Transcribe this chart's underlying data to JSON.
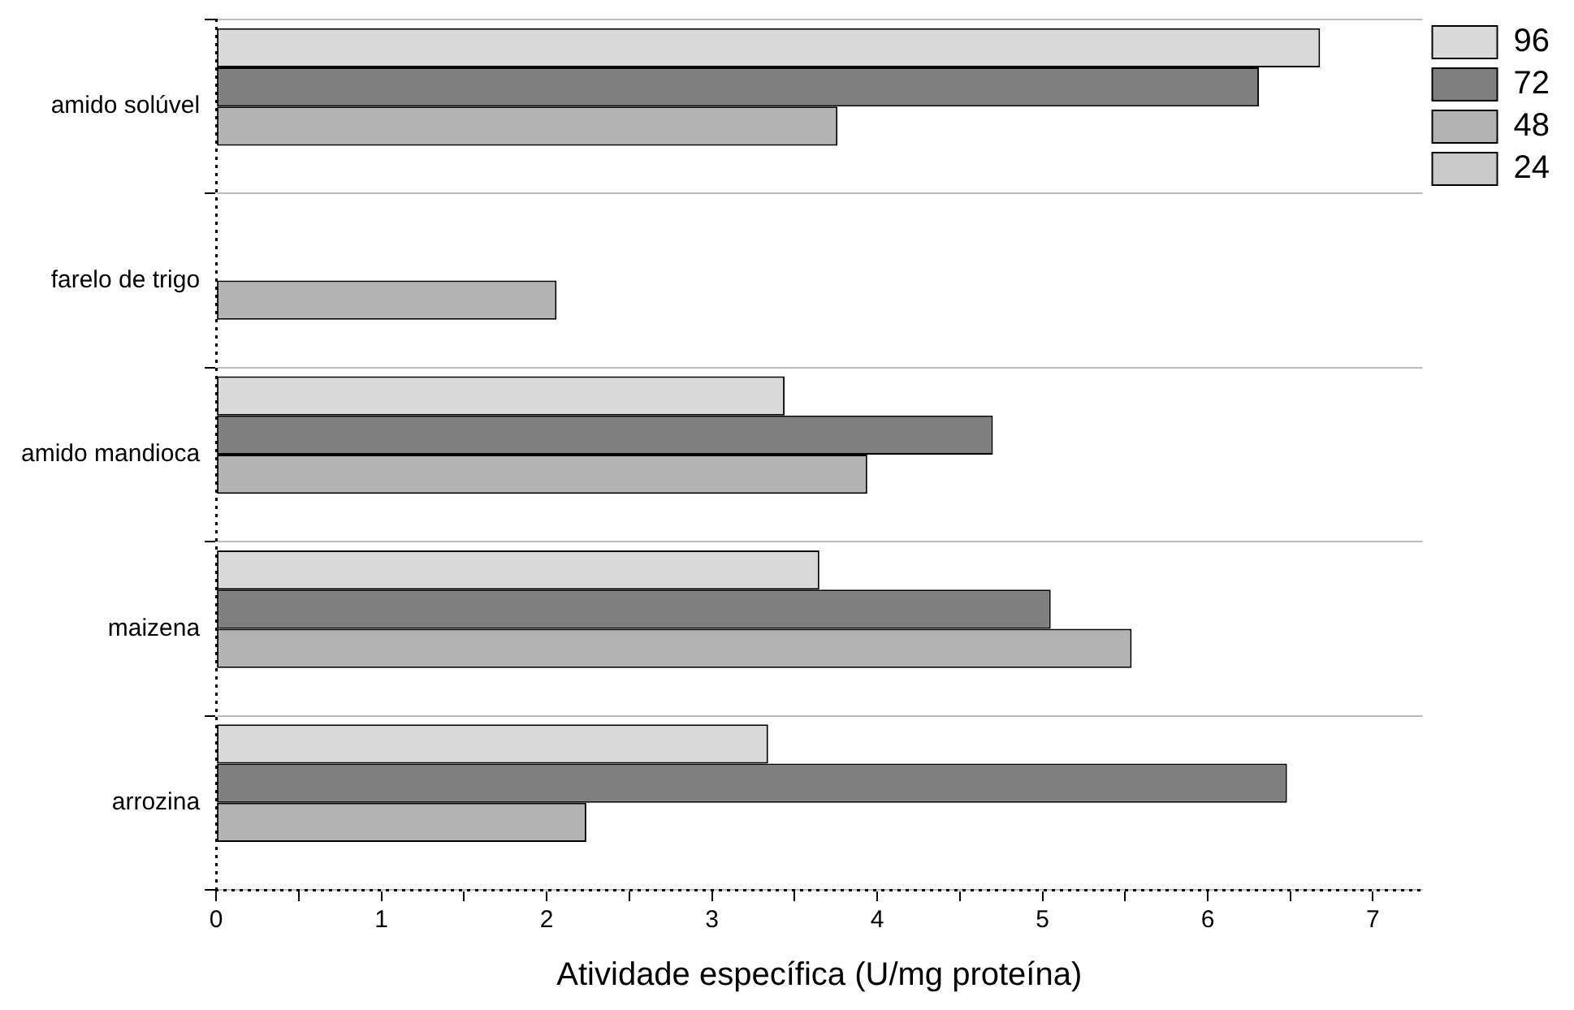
{
  "chart_data": {
    "type": "bar",
    "orientation": "horizontal",
    "xlabel": "Atividade específica (U/mg proteína)",
    "categories": [
      "amido solúvel",
      "farelo de trigo",
      "amido mandioca",
      "maizena",
      "arrozina"
    ],
    "series": [
      {
        "name": "96",
        "color": "#d9d9d9",
        "values": [
          6.68,
          null,
          3.44,
          3.65,
          3.34
        ]
      },
      {
        "name": "72",
        "color": "#7f7f7f",
        "values": [
          6.31,
          null,
          4.7,
          5.05,
          6.48
        ]
      },
      {
        "name": "48",
        "color": "#b3b3b3",
        "values": [
          3.76,
          2.06,
          3.94,
          5.54,
          2.24
        ]
      },
      {
        "name": "24",
        "color": "#c8c8c8",
        "values": [
          null,
          null,
          null,
          null,
          null
        ]
      }
    ],
    "xlim": [
      0,
      7.3
    ],
    "xticks": [
      0,
      {
        "value": 0.5,
        "label": null
      },
      1,
      {
        "value": 1.5,
        "label": null
      },
      2,
      {
        "value": 2.5,
        "label": null
      },
      3,
      {
        "value": 3.5,
        "label": null
      },
      4,
      {
        "value": 4.5,
        "label": null
      },
      5,
      {
        "value": 5.5,
        "label": null
      },
      6,
      {
        "value": 6.5,
        "label": null
      },
      7
    ],
    "grid": "y",
    "legend": "top right"
  }
}
